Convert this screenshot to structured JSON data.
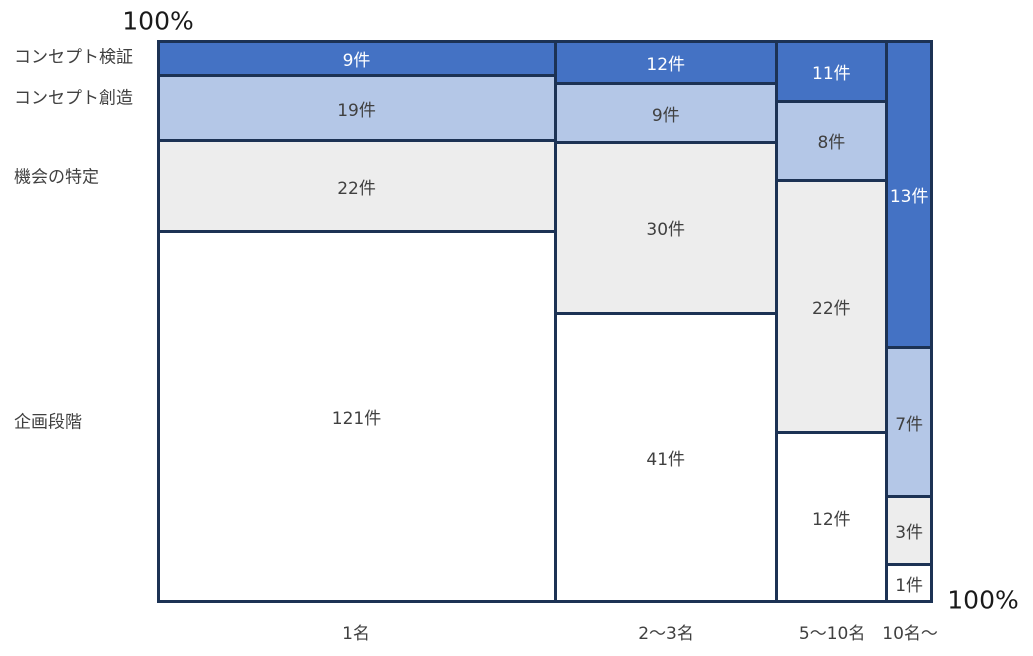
{
  "chart_data": {
    "type": "mosaic",
    "title": "",
    "unit": "件",
    "x_axis_categories": [
      "1名",
      "2〜3名",
      "5〜10名",
      "10名〜"
    ],
    "y_axis_categories": [
      "コンセプト検証",
      "コンセプト創造",
      "機会の特定",
      "企画段階"
    ],
    "axis_labels": {
      "top_left": "100%",
      "bottom_right": "100%"
    },
    "colors": {
      "コンセプト検証": "#4472c4",
      "コンセプト創造": "#b4c7e7",
      "機会の特定": "#ededed",
      "企画段階": "#ffffff",
      "border": "#1c3254",
      "label_dark": "#404040",
      "label_light": "#ffffff"
    },
    "legend": "none",
    "grid": "off",
    "y_label_pos_pct": [
      2.7,
      9.9,
      24.0,
      67.5
    ],
    "columns": [
      {
        "category": "1名",
        "total": 171,
        "width_pct": 51.3,
        "segments": [
          {
            "row": "コンセプト検証",
            "count": 9,
            "label": "9件",
            "height_pct": 6.2
          },
          {
            "row": "コンセプト創造",
            "count": 19,
            "label": "19件",
            "height_pct": 11.5
          },
          {
            "row": "機会の特定",
            "count": 22,
            "label": "22件",
            "height_pct": 16.3
          },
          {
            "row": "企画段階",
            "count": 121,
            "label": "121件",
            "height_pct": 66.0
          }
        ]
      },
      {
        "category": "2〜3名",
        "total": 92,
        "width_pct": 28.6,
        "segments": [
          {
            "row": "コンセプト検証",
            "count": 12,
            "label": "12件",
            "height_pct": 7.6
          },
          {
            "row": "コンセプト創造",
            "count": 9,
            "label": "9件",
            "height_pct": 10.5
          },
          {
            "row": "機会の特定",
            "count": 30,
            "label": "30件",
            "height_pct": 30.4
          },
          {
            "row": "企画段階",
            "count": 41,
            "label": "41件",
            "height_pct": 51.5
          }
        ]
      },
      {
        "category": "5〜10名",
        "total": 53,
        "width_pct": 14.2,
        "segments": [
          {
            "row": "コンセプト検証",
            "count": 11,
            "label": "11件",
            "height_pct": 10.7
          },
          {
            "row": "コンセプト創造",
            "count": 8,
            "label": "8件",
            "height_pct": 14.2
          },
          {
            "row": "機会の特定",
            "count": 22,
            "label": "22件",
            "height_pct": 44.9
          },
          {
            "row": "企画段階",
            "count": 12,
            "label": "12件",
            "height_pct": 30.2
          }
        ]
      },
      {
        "category": "10名〜",
        "total": 24,
        "width_pct": 5.9,
        "segments": [
          {
            "row": "コンセプト検証",
            "count": 13,
            "label": "13件",
            "height_pct": 54.7
          },
          {
            "row": "コンセプト創造",
            "count": 7,
            "label": "7件",
            "height_pct": 26.5
          },
          {
            "row": "機会の特定",
            "count": 3,
            "label": "3件",
            "height_pct": 12.1
          },
          {
            "row": "企画段階",
            "count": 1,
            "label": "1件",
            "height_pct": 6.7
          }
        ]
      }
    ]
  }
}
